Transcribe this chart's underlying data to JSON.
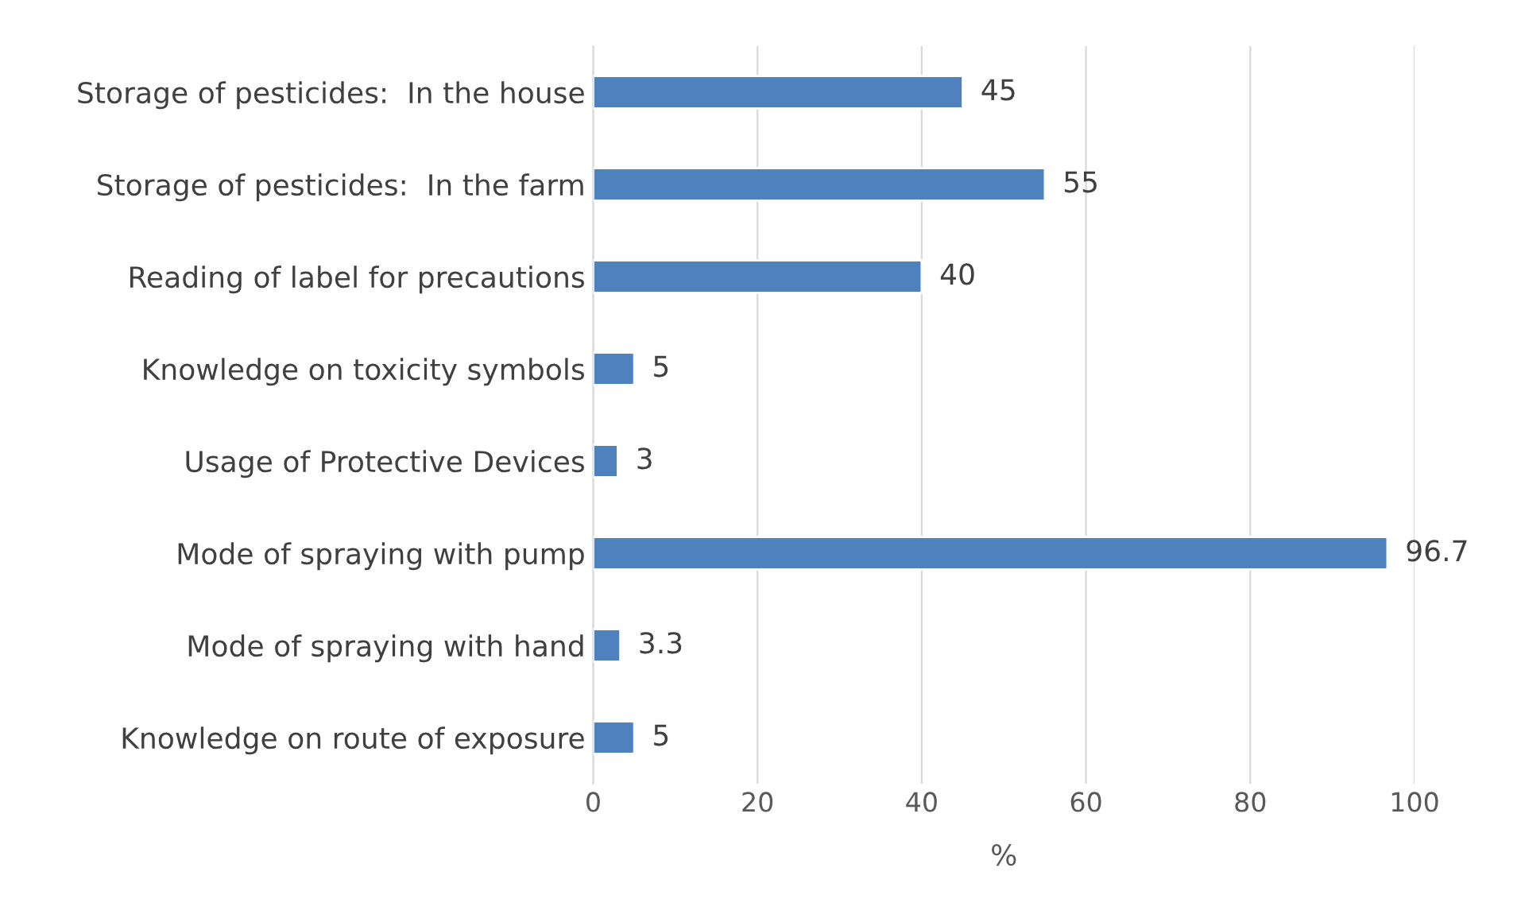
{
  "chart_data": {
    "type": "bar",
    "orientation": "horizontal",
    "xlabel": "%",
    "categories": [
      "Storage of pesticides:  In the house",
      "Storage of pesticides:  In the farm",
      "Reading of label for precautions",
      "Knowledge on toxicity symbols",
      "Usage of Protective Devices",
      "Mode of spraying with pump",
      "Mode of spraying with hand",
      "Knowledge on route of exposure"
    ],
    "values": [
      45,
      55,
      40,
      5,
      3,
      96.7,
      3.3,
      5
    ],
    "color": "#4f81bd",
    "xlim": [
      0,
      100
    ],
    "xticks": [
      0,
      20,
      40,
      60,
      80,
      100
    ],
    "grid": "x",
    "data_labels": true
  }
}
